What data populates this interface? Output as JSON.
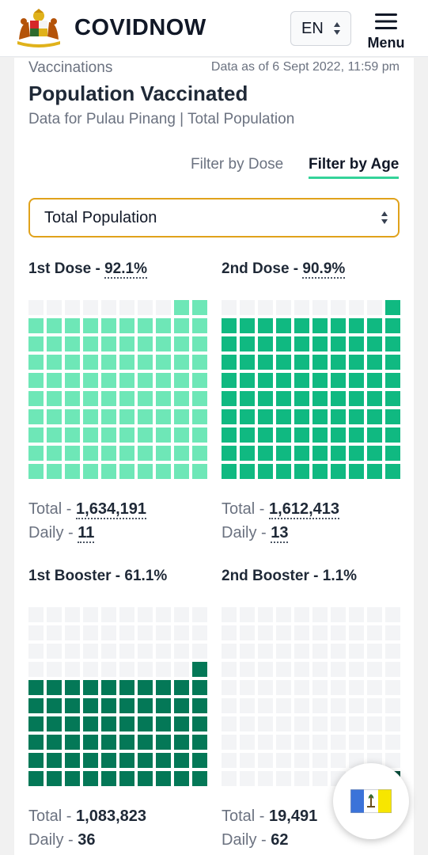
{
  "header": {
    "brand": "COVIDNOW",
    "language": "EN",
    "menu_label": "Menu"
  },
  "page": {
    "section_label": "Vaccinations",
    "data_as_of": "Data as of 6 Sept 2022, 11:59 pm",
    "title": "Population Vaccinated",
    "subtitle": "Data for Pulau Pinang | Total Population"
  },
  "filters": {
    "dose_tab": "Filter by Dose",
    "age_tab": "Filter by Age",
    "active_tab": "Filter by Age",
    "selected_population": "Total Population"
  },
  "doses": [
    {
      "label": "1st Dose",
      "separator": " - ",
      "percent": "92.1%",
      "percent_value": 92.1,
      "filled_squares": 92,
      "color": "#6ee7b7",
      "total_label": "Total - ",
      "total": "1,634,191",
      "daily_label": "Daily - ",
      "daily": "11",
      "underlined": true
    },
    {
      "label": "2nd Dose",
      "separator": " - ",
      "percent": "90.9%",
      "percent_value": 90.9,
      "filled_squares": 91,
      "color": "#10b981",
      "total_label": "Total - ",
      "total": "1,612,413",
      "daily_label": "Daily - ",
      "daily": "13",
      "underlined": true
    },
    {
      "label": "1st Booster",
      "separator": " - ",
      "percent": "61.1%",
      "percent_value": 61.1,
      "filled_squares": 61,
      "color": "#047857",
      "total_label": "Total - ",
      "total": "1,083,823",
      "daily_label": "Daily - ",
      "daily": "36",
      "underlined": false
    },
    {
      "label": "2nd Booster",
      "separator": " - ",
      "percent": "1.1%",
      "percent_value": 1.1,
      "filled_squares": 1,
      "color": "#064e3b",
      "total_label": "Total - ",
      "total": "19,491",
      "daily_label": "Daily - ",
      "daily": "62",
      "underlined": false
    }
  ],
  "colors": {
    "empty_square": "#f3f4f6",
    "select_border": "#e0a21b",
    "active_tab_underline": "#34d399"
  },
  "icons": {
    "logo": "malaysia-coat-of-arms",
    "fab": "pulau-pinang-flag-icon"
  }
}
